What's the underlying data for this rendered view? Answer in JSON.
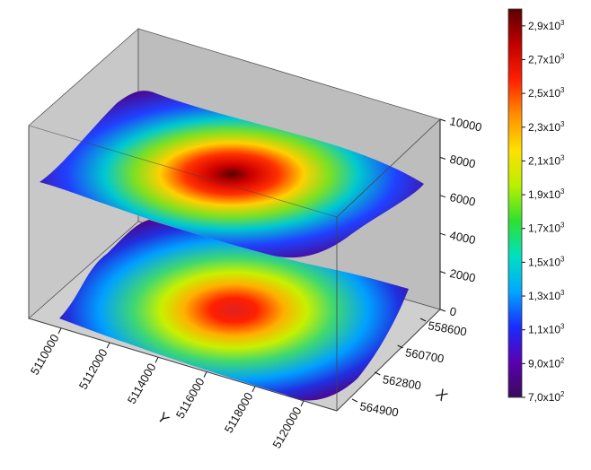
{
  "chart_data": {
    "type": "3d-surface",
    "title": "",
    "surfaces": [
      "upper-surface",
      "lower-surface"
    ],
    "x_axis": {
      "label": "X",
      "ticks": [
        "558600",
        "560700",
        "562800",
        "564900"
      ]
    },
    "y_axis": {
      "label": "Y",
      "ticks": [
        "5110000",
        "5112000",
        "5114000",
        "5116000",
        "5118000",
        "5120000"
      ]
    },
    "z_axis": {
      "label": "",
      "range": [
        0,
        10000
      ],
      "ticks": [
        "0",
        "2000",
        "4000",
        "6000",
        "8000",
        "10000"
      ]
    },
    "colorbar": {
      "range": [
        700,
        3000
      ],
      "ticks": [
        {
          "base": "7,0x10",
          "exp": "2"
        },
        {
          "base": "9,0x10",
          "exp": "2"
        },
        {
          "base": "1,1x10",
          "exp": "3"
        },
        {
          "base": "1,3x10",
          "exp": "3"
        },
        {
          "base": "1,5x10",
          "exp": "3"
        },
        {
          "base": "1,7x10",
          "exp": "3"
        },
        {
          "base": "1,9x10",
          "exp": "3"
        },
        {
          "base": "2,1x10",
          "exp": "3"
        },
        {
          "base": "2,3x10",
          "exp": "3"
        },
        {
          "base": "2,5x10",
          "exp": "3"
        },
        {
          "base": "2,7x10",
          "exp": "3"
        },
        {
          "base": "2,9x10",
          "exp": "3"
        }
      ],
      "colors": [
        "#3a0a5c",
        "#5a00b0",
        "#1a2cff",
        "#00a8ff",
        "#00e0c0",
        "#30e030",
        "#b8f000",
        "#ffe000",
        "#ff9000",
        "#ff2000",
        "#c00000",
        "#5a0000"
      ]
    },
    "grid": false,
    "pane_color": "#c0c0c0",
    "legend_placement": "right"
  }
}
